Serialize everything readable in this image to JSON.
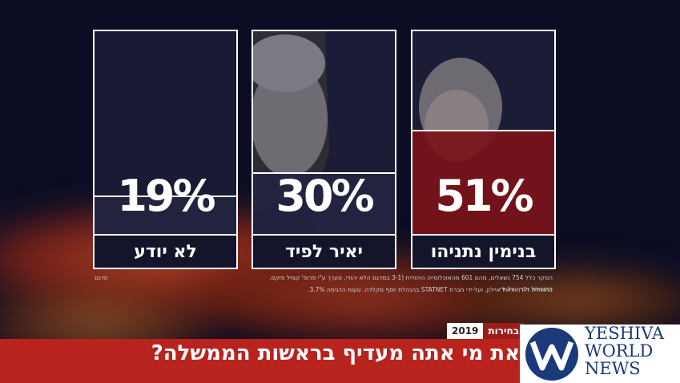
{
  "chart_data": {
    "type": "bar",
    "categories": [
      "בנימין נתניהו",
      "יאיר לפיד",
      "לא יודע"
    ],
    "values": [
      51,
      30,
      19
    ],
    "value_labels": [
      "51%",
      "30%",
      "19%"
    ],
    "ylim": [
      0,
      100
    ],
    "bar_colors": [
      "#7a1219",
      "#232540",
      "#232540"
    ]
  },
  "survey_note": {
    "line1": "הסקר כלל 754 נשאלים, מהם 601 מהאוכלוסייה היהודית (3-1 במדגם הלא יהודי, ונערך ע\"י פרופ' קמיל פוקס. התשאול  נערך על ידי",
    "line2": "בהנהלת ד\"ר אריאל איילון, ועל-ידי חברת  STATNET בהנהלת יוסף מקלדה. טעות הדגימה 3.7%.",
    "statnet": "STATNET"
  },
  "small_logo": "מדגם",
  "banner": {
    "title": "את מי אתה מעדיף בראשות הממשלה?",
    "tag_label": "בחירות",
    "tag_year": "2019"
  },
  "brand": {
    "line1": "YESHIVA",
    "line2": "WORLD",
    "line3": "NEWS",
    "color": "#1a3a7a"
  }
}
